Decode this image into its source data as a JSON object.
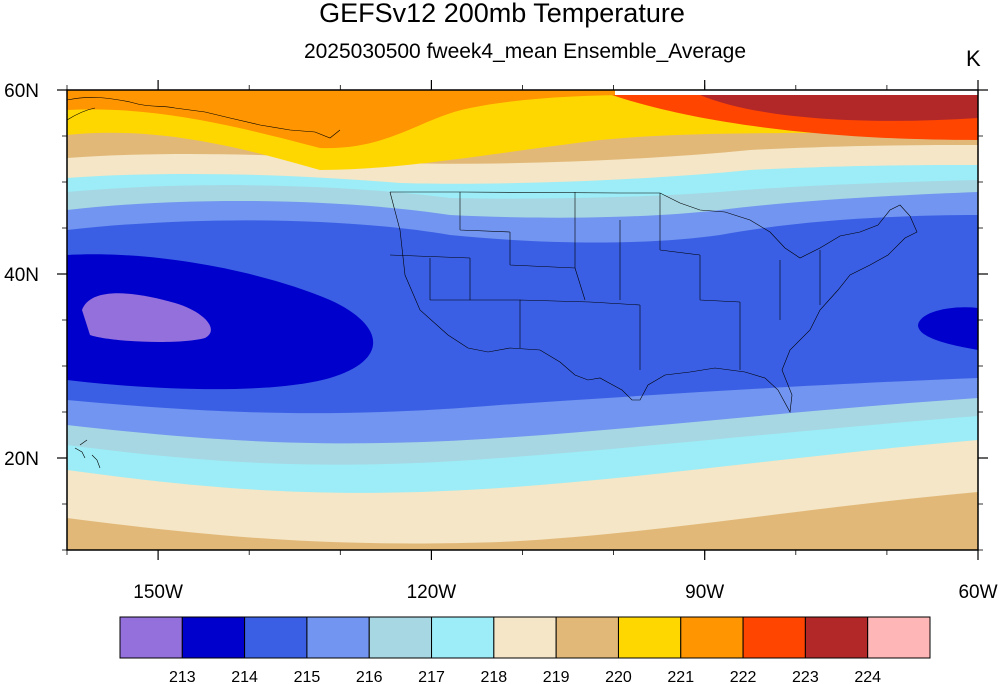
{
  "title": "GEFSv12 200mb Temperature",
  "subtitle": "2025030500 fweek4_mean Ensemble_Average",
  "units": "K",
  "map": {
    "lon_range": [
      -160,
      -60
    ],
    "lat_range": [
      10,
      60
    ],
    "lon_ticks": [
      {
        "value": -150,
        "label": "150W"
      },
      {
        "value": -120,
        "label": "120W"
      },
      {
        "value": -90,
        "label": "90W"
      },
      {
        "value": -60,
        "label": "60W"
      }
    ],
    "lat_ticks": [
      {
        "value": 60,
        "label": "60N"
      },
      {
        "value": 40,
        "label": "40N"
      },
      {
        "value": 20,
        "label": "20N"
      }
    ]
  },
  "colorbar": {
    "colors": [
      "#9370DB",
      "#0000CD",
      "#3A5FE5",
      "#7195F0",
      "#A6D7E3",
      "#9CEDF7",
      "#F4E6C6",
      "#E2B878",
      "#FFD700",
      "#FF9500",
      "#FF4500",
      "#B22828",
      "#FFB6B6"
    ],
    "labels": [
      "213",
      "214",
      "215",
      "216",
      "217",
      "218",
      "219",
      "220",
      "221",
      "222",
      "223",
      "224"
    ]
  }
}
